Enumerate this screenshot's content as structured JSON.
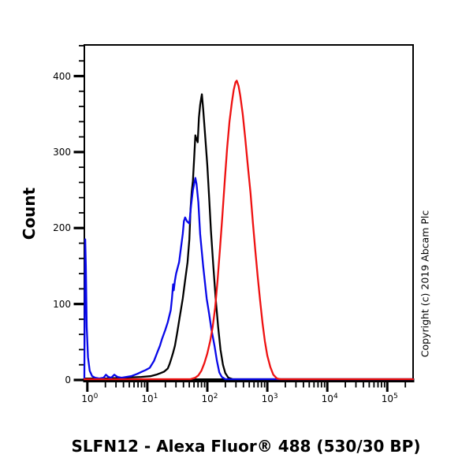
{
  "figure": {
    "background": "#ffffff"
  },
  "y_axis": {
    "label": "Count",
    "ticks": [
      {
        "label": "400",
        "value": 400
      },
      {
        "label": "300",
        "value": 300
      },
      {
        "label": "200",
        "value": 200
      },
      {
        "label": "100",
        "value": 100
      },
      {
        "label": "0",
        "value": 0
      }
    ]
  },
  "x_axis": {
    "title": "SLFN12 - Alexa Fluor® 488 (530/30 BP)",
    "tick_base": "10",
    "ticks": [
      {
        "exponent": "0",
        "log10": 0
      },
      {
        "exponent": "1",
        "log10": 1
      },
      {
        "exponent": "2",
        "log10": 2
      },
      {
        "exponent": "3",
        "log10": 3
      },
      {
        "exponent": "4",
        "log10": 4
      },
      {
        "exponent": "5",
        "log10": 5
      }
    ]
  },
  "copyright": "Copyright (c) 2019 Abcam Plc",
  "chart_data": {
    "type": "line",
    "subtype": "flow-cytometry-histogram",
    "title": "SLFN12 - Alexa Fluor® 488 (530/30 BP)",
    "xlabel": "SLFN12 - Alexa Fluor® 488 (530/30 BP)",
    "ylabel": "Count",
    "x_scale": "log10",
    "xlim_log10": [
      -0.05,
      5.43
    ],
    "ylim": [
      0,
      441
    ],
    "ytick_values": [
      0,
      100,
      200,
      300,
      400
    ],
    "ytick_minor_step": 20,
    "xtick_decades": [
      0,
      1,
      2,
      3,
      4,
      5
    ],
    "grid": false,
    "legend": false,
    "frame_color": "#000000",
    "series": [
      {
        "name": "black-curve",
        "color": "#000000",
        "points": [
          [
            -0.05,
            2
          ],
          [
            0.3,
            2
          ],
          [
            0.6,
            3
          ],
          [
            0.9,
            4
          ],
          [
            1.05,
            5
          ],
          [
            1.15,
            7
          ],
          [
            1.22,
            9
          ],
          [
            1.28,
            11
          ],
          [
            1.34,
            15
          ],
          [
            1.37,
            21
          ],
          [
            1.4,
            28
          ],
          [
            1.43,
            36
          ],
          [
            1.46,
            45
          ],
          [
            1.5,
            63
          ],
          [
            1.54,
            83
          ],
          [
            1.59,
            107
          ],
          [
            1.63,
            131
          ],
          [
            1.67,
            155
          ],
          [
            1.7,
            185
          ],
          [
            1.72,
            225
          ],
          [
            1.74,
            248
          ],
          [
            1.76,
            262
          ],
          [
            1.78,
            292
          ],
          [
            1.8,
            322
          ],
          [
            1.82,
            317
          ],
          [
            1.84,
            313
          ],
          [
            1.86,
            345
          ],
          [
            1.88,
            362
          ],
          [
            1.9,
            372
          ],
          [
            1.91,
            376
          ],
          [
            1.93,
            357
          ],
          [
            1.96,
            325
          ],
          [
            2.0,
            282
          ],
          [
            2.03,
            240
          ],
          [
            2.06,
            196
          ],
          [
            2.1,
            150
          ],
          [
            2.14,
            107
          ],
          [
            2.18,
            70
          ],
          [
            2.22,
            40
          ],
          [
            2.26,
            20
          ],
          [
            2.3,
            9
          ],
          [
            2.35,
            3
          ],
          [
            2.42,
            1
          ],
          [
            5.43,
            1
          ]
        ]
      },
      {
        "name": "blue-curve",
        "color": "#0808e8",
        "points": [
          [
            -0.05,
            2
          ],
          [
            -0.045,
            80
          ],
          [
            -0.035,
            185
          ],
          [
            -0.025,
            150
          ],
          [
            -0.01,
            70
          ],
          [
            0.01,
            30
          ],
          [
            0.04,
            12
          ],
          [
            0.08,
            5
          ],
          [
            0.13,
            3
          ],
          [
            0.2,
            2
          ],
          [
            0.27,
            3
          ],
          [
            0.31,
            7
          ],
          [
            0.35,
            4
          ],
          [
            0.4,
            3
          ],
          [
            0.45,
            7
          ],
          [
            0.5,
            4
          ],
          [
            0.57,
            3
          ],
          [
            0.65,
            4
          ],
          [
            0.73,
            5
          ],
          [
            0.83,
            8
          ],
          [
            0.91,
            11
          ],
          [
            0.97,
            13
          ],
          [
            1.04,
            16
          ],
          [
            1.11,
            25
          ],
          [
            1.17,
            37
          ],
          [
            1.21,
            45
          ],
          [
            1.24,
            53
          ],
          [
            1.3,
            66
          ],
          [
            1.34,
            76
          ],
          [
            1.39,
            92
          ],
          [
            1.41,
            107
          ],
          [
            1.43,
            126
          ],
          [
            1.44,
            118
          ],
          [
            1.46,
            131
          ],
          [
            1.48,
            140
          ],
          [
            1.53,
            155
          ],
          [
            1.55,
            168
          ],
          [
            1.59,
            192
          ],
          [
            1.61,
            209
          ],
          [
            1.63,
            214
          ],
          [
            1.66,
            209
          ],
          [
            1.7,
            206
          ],
          [
            1.73,
            230
          ],
          [
            1.76,
            250
          ],
          [
            1.8,
            266
          ],
          [
            1.82,
            258
          ],
          [
            1.85,
            234
          ],
          [
            1.88,
            192
          ],
          [
            1.93,
            150
          ],
          [
            1.99,
            107
          ],
          [
            2.03,
            87
          ],
          [
            2.07,
            66
          ],
          [
            2.12,
            45
          ],
          [
            2.16,
            25
          ],
          [
            2.2,
            10
          ],
          [
            2.24,
            4
          ],
          [
            2.3,
            1
          ],
          [
            5.43,
            1
          ]
        ]
      },
      {
        "name": "red-curve",
        "color": "#ee1111",
        "points": [
          [
            -0.05,
            1
          ],
          [
            1.0,
            1
          ],
          [
            1.5,
            1
          ],
          [
            1.72,
            1
          ],
          [
            1.8,
            3
          ],
          [
            1.85,
            6
          ],
          [
            1.9,
            12
          ],
          [
            1.95,
            22
          ],
          [
            2.0,
            35
          ],
          [
            2.05,
            52
          ],
          [
            2.09,
            70
          ],
          [
            2.13,
            95
          ],
          [
            2.17,
            130
          ],
          [
            2.21,
            172
          ],
          [
            2.25,
            215
          ],
          [
            2.29,
            262
          ],
          [
            2.33,
            305
          ],
          [
            2.37,
            340
          ],
          [
            2.41,
            366
          ],
          [
            2.44,
            382
          ],
          [
            2.47,
            392
          ],
          [
            2.49,
            394
          ],
          [
            2.52,
            387
          ],
          [
            2.55,
            374
          ],
          [
            2.59,
            350
          ],
          [
            2.63,
            320
          ],
          [
            2.67,
            286
          ],
          [
            2.72,
            246
          ],
          [
            2.76,
            207
          ],
          [
            2.8,
            170
          ],
          [
            2.84,
            136
          ],
          [
            2.88,
            104
          ],
          [
            2.92,
            75
          ],
          [
            2.96,
            51
          ],
          [
            3.0,
            32
          ],
          [
            3.05,
            17
          ],
          [
            3.1,
            7
          ],
          [
            3.16,
            2
          ],
          [
            3.22,
            1
          ],
          [
            5.43,
            1
          ]
        ]
      }
    ]
  }
}
